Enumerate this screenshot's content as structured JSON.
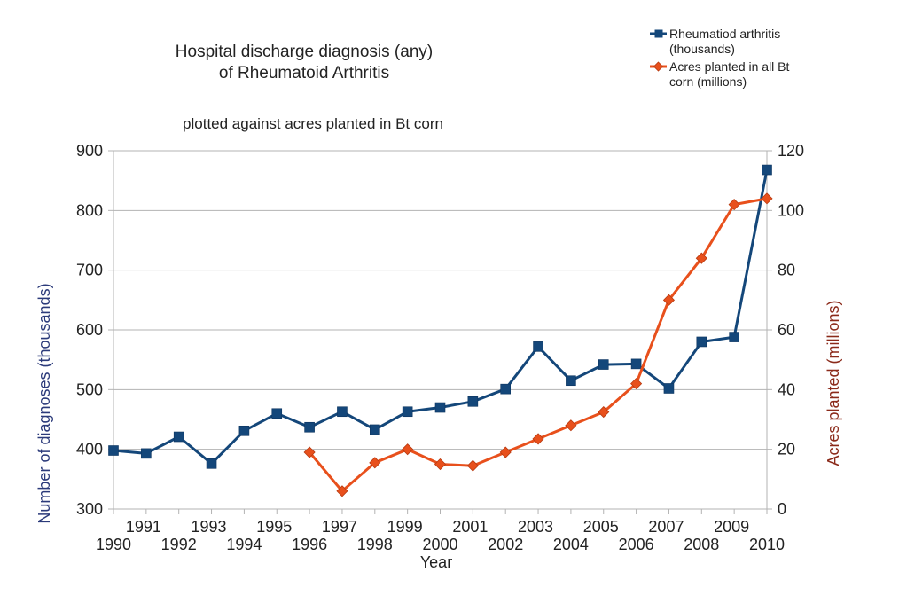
{
  "chart_data": {
    "type": "line",
    "title_lines": [
      "Hospital discharge diagnosis (any)",
      "of Rheumatoid Arthritis"
    ],
    "subtitle": "plotted against acres planted in Bt corn",
    "xlabel": "Year",
    "ylabel_left": "Number of diagnoses (thousands)",
    "ylabel_right": "Acres planted (millions)",
    "ylim_left": [
      300,
      900
    ],
    "ylim_right": [
      0,
      120
    ],
    "yticks_left": [
      "300",
      "400",
      "500",
      "600",
      "700",
      "800",
      "900"
    ],
    "yticks_right": [
      "0",
      "20",
      "40",
      "60",
      "80",
      "100",
      "120"
    ],
    "x_tick_labels": [
      "1990",
      "1991",
      "1992",
      "1993",
      "1994",
      "1995",
      "1996",
      "1997",
      "1998",
      "1999",
      "2000",
      "2001",
      "2002",
      "2003",
      "2004",
      "2005",
      "2006",
      "2007",
      "2008",
      "2009",
      "2010"
    ],
    "grid": true,
    "legend_position": "top-right",
    "series": [
      {
        "name_lines": [
          "Rheumatiod arthritis",
          "(thousands)"
        ],
        "axis": "left",
        "color": "#14477a",
        "marker": "square",
        "x": [
          1990,
          1991,
          1992,
          1993,
          1994,
          1995,
          1996,
          1997,
          1998,
          1999,
          2000,
          2001,
          2002,
          2003,
          2004,
          2005,
          2006,
          2007,
          2008,
          2009,
          2010
        ],
        "values": [
          398,
          393,
          421,
          376,
          431,
          460,
          437,
          463,
          433,
          463,
          470,
          480,
          501,
          572,
          515,
          542,
          543,
          502,
          580,
          588,
          868
        ]
      },
      {
        "name_lines": [
          "Acres planted in all Bt",
          "corn (millions)"
        ],
        "axis": "right",
        "color": "#e8501c",
        "marker": "diamond",
        "x": [
          1996,
          1997,
          1998,
          1999,
          2000,
          2001,
          2002,
          2003,
          2004,
          2005,
          2006,
          2007,
          2008,
          2009,
          2010
        ],
        "values": [
          19,
          6,
          15.5,
          20,
          15,
          14.5,
          19,
          23.5,
          28,
          32.5,
          42,
          70,
          84,
          102,
          104
        ]
      }
    ]
  }
}
